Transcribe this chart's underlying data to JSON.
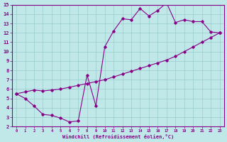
{
  "bg_color": "#c0e8e8",
  "grid_color": "#98cccc",
  "line_color": "#880088",
  "xlabel": "Windchill (Refroidissement éolien,°C)",
  "xlim": [
    -0.5,
    23.5
  ],
  "ylim": [
    2,
    15
  ],
  "xticks": [
    0,
    1,
    2,
    3,
    4,
    5,
    6,
    7,
    8,
    9,
    10,
    11,
    12,
    13,
    14,
    15,
    16,
    17,
    18,
    19,
    20,
    21,
    22,
    23
  ],
  "yticks": [
    2,
    3,
    4,
    5,
    6,
    7,
    8,
    9,
    10,
    11,
    12,
    13,
    14,
    15
  ],
  "upper_x": [
    0,
    1,
    2,
    3,
    4,
    5,
    6,
    7,
    8,
    9,
    10,
    11,
    12,
    13,
    14,
    15,
    16,
    17,
    18,
    19,
    20,
    21,
    22,
    23
  ],
  "upper_y": [
    5.5,
    5.0,
    4.2,
    3.3,
    3.2,
    2.9,
    2.5,
    2.6,
    7.5,
    4.2,
    10.5,
    12.2,
    13.5,
    13.4,
    14.6,
    13.8,
    14.4,
    15.2,
    13.1,
    13.4,
    13.2,
    13.2,
    12.1,
    12.0
  ],
  "lower_x": [
    0,
    1,
    2,
    3,
    4,
    5,
    6,
    7,
    8,
    9,
    10,
    11,
    12,
    13,
    14,
    15,
    16,
    17,
    18,
    19,
    20,
    21,
    22,
    23
  ],
  "lower_y": [
    5.5,
    5.7,
    5.9,
    5.8,
    5.9,
    6.0,
    6.2,
    6.4,
    6.6,
    6.8,
    7.0,
    7.3,
    7.6,
    7.9,
    8.2,
    8.5,
    8.8,
    9.1,
    9.5,
    10.0,
    10.5,
    11.0,
    11.5,
    12.0
  ]
}
